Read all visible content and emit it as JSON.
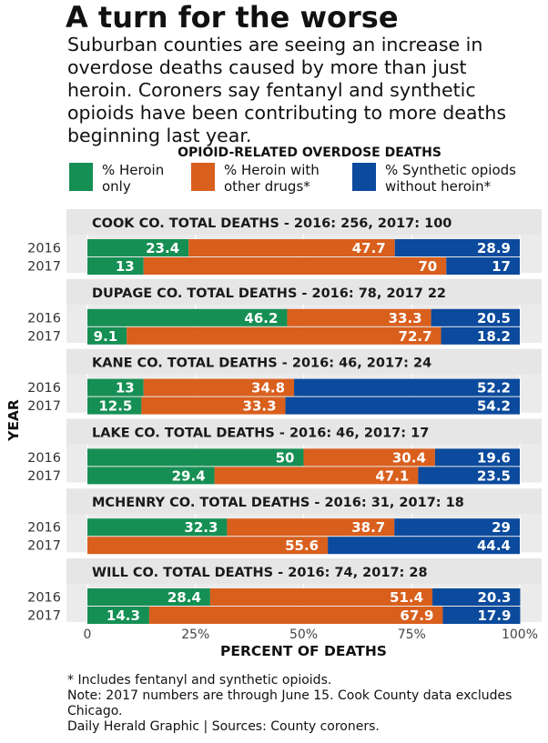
{
  "header": {
    "title": "A turn for the worse",
    "subtitle": "Suburban counties are seeing an increase in overdose deaths caused by more than just heroin. Coroners say fentanyl and synthetic opioids have been contributing to more deaths beginning last year."
  },
  "legend": {
    "title": "OPIOID-RELATED OVERDOSE DEATHS",
    "items": [
      {
        "label": "% Heroin\nonly",
        "color": "#168f54"
      },
      {
        "label": "% Heroin with\nother drugs*",
        "color": "#d95f1d"
      },
      {
        "label": "% Synthetic opiods\nwithout heroin*",
        "color": "#0b4a9c"
      }
    ]
  },
  "chart_data": {
    "type": "bar",
    "orientation": "horizontal",
    "stacked": true,
    "xlabel": "PERCENT OF DEATHS",
    "ylabel": "YEAR",
    "xlim": [
      0,
      100
    ],
    "x_ticks": [
      "0",
      "25%",
      "50%",
      "75%",
      "100%"
    ],
    "series_colors": [
      "#168f54",
      "#d95f1d",
      "#0b4a9c"
    ],
    "panels": [
      {
        "title": "COOK CO. TOTAL DEATHS - 2016: 256, 2017: 100",
        "rows": [
          {
            "year": "2016",
            "values": [
              23.4,
              47.7,
              28.9
            ]
          },
          {
            "year": "2017",
            "values": [
              13,
              70,
              17
            ]
          }
        ]
      },
      {
        "title": "DUPAGE CO. TOTAL DEATHS - 2016: 78, 2017 22",
        "rows": [
          {
            "year": "2016",
            "values": [
              46.2,
              33.3,
              20.5
            ]
          },
          {
            "year": "2017",
            "values": [
              9.1,
              72.7,
              18.2
            ]
          }
        ]
      },
      {
        "title": "KANE CO. TOTAL DEATHS - 2016: 46, 2017: 24",
        "rows": [
          {
            "year": "2016",
            "values": [
              13,
              34.8,
              52.2
            ]
          },
          {
            "year": "2017",
            "values": [
              12.5,
              33.3,
              54.2
            ]
          }
        ]
      },
      {
        "title": "LAKE CO. TOTAL DEATHS - 2016: 46, 2017: 17",
        "rows": [
          {
            "year": "2016",
            "values": [
              50,
              30.4,
              19.6
            ]
          },
          {
            "year": "2017",
            "values": [
              29.4,
              47.1,
              23.5
            ]
          }
        ]
      },
      {
        "title": "MCHENRY CO. TOTAL DEATHS - 2016: 31, 2017: 18",
        "rows": [
          {
            "year": "2016",
            "values": [
              32.3,
              38.7,
              29
            ]
          },
          {
            "year": "2017",
            "values": [
              0,
              55.6,
              44.4
            ]
          }
        ]
      },
      {
        "title": "WILL CO. TOTAL DEATHS - 2016: 74, 2017: 28",
        "rows": [
          {
            "year": "2016",
            "values": [
              28.4,
              51.4,
              20.3
            ]
          },
          {
            "year": "2017",
            "values": [
              14.3,
              67.9,
              17.9
            ]
          }
        ]
      }
    ]
  },
  "footnotes": [
    "* Includes fentanyl and synthetic opioids.",
    "Note: 2017 numbers are through June 15. Cook County data excludes Chicago.",
    "Daily Herald Graphic | Sources: County coroners."
  ]
}
